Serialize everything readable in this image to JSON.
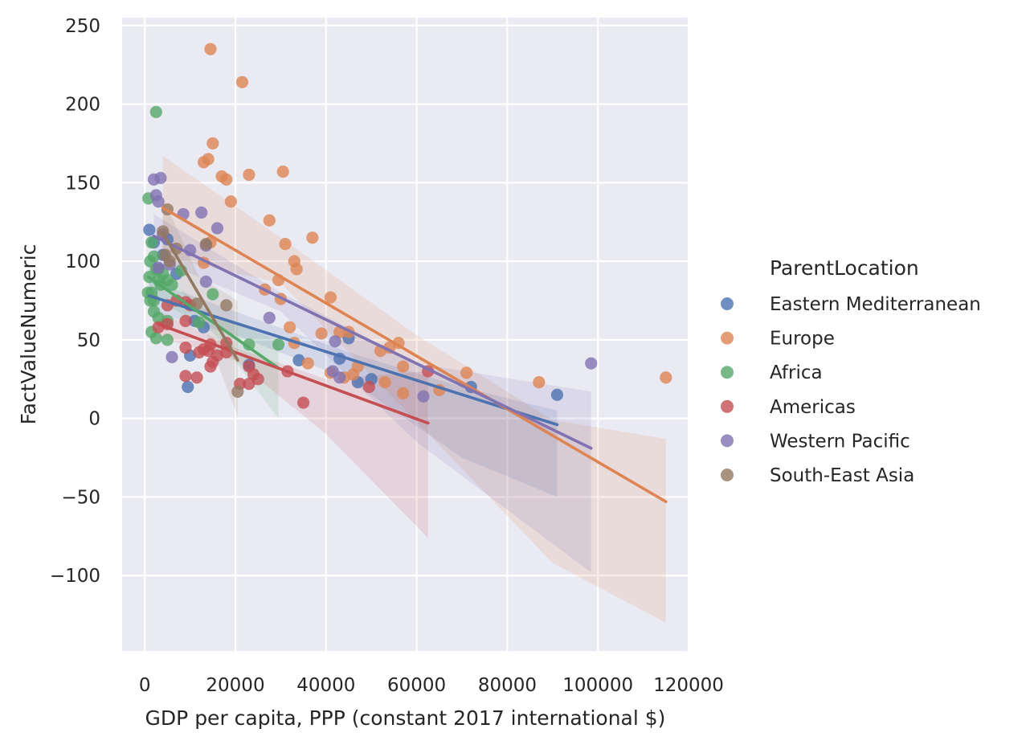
{
  "chart_data": {
    "type": "scatter",
    "xlabel": "GDP per capita, PPP (constant 2017 international $)",
    "ylabel": "FactValueNumeric",
    "xlim": [
      -5000,
      120000
    ],
    "ylim": [
      -148,
      255
    ],
    "xticks": [
      0,
      20000,
      40000,
      60000,
      80000,
      100000,
      120000
    ],
    "xtick_labels": [
      "0",
      "20000",
      "40000",
      "60000",
      "80000",
      "100000",
      "120000"
    ],
    "yticks": [
      -100,
      -50,
      0,
      50,
      100,
      150,
      200,
      250
    ],
    "ytick_labels": [
      "−100",
      "−50",
      "0",
      "50",
      "100",
      "150",
      "200",
      "250"
    ],
    "grid": true,
    "legend": {
      "title": "ParentLocation",
      "placement": "right"
    },
    "series": [
      {
        "name": "Eastern Mediterranean",
        "color": "#4C72B0",
        "points": [
          [
            1000,
            120
          ],
          [
            2000,
            112
          ],
          [
            3000,
            95
          ],
          [
            4000,
            104
          ],
          [
            5000,
            114
          ],
          [
            7000,
            92
          ],
          [
            10000,
            40
          ],
          [
            9500,
            20
          ],
          [
            11000,
            62
          ],
          [
            13000,
            58
          ],
          [
            23000,
            34
          ],
          [
            34000,
            37
          ],
          [
            43000,
            38
          ],
          [
            45000,
            51
          ],
          [
            47000,
            23
          ],
          [
            50000,
            25
          ],
          [
            72000,
            20
          ],
          [
            91000,
            15
          ]
        ],
        "fit": [
          [
            1000,
            78
          ],
          [
            91000,
            -4
          ]
        ],
        "ci_upper": [
          [
            1000,
            88
          ],
          [
            20000,
            68
          ],
          [
            45000,
            42
          ],
          [
            70000,
            20
          ],
          [
            91000,
            5
          ]
        ],
        "ci_lower": [
          [
            1000,
            68
          ],
          [
            20000,
            53
          ],
          [
            45000,
            25
          ],
          [
            70000,
            -25
          ],
          [
            91000,
            -50
          ]
        ]
      },
      {
        "name": "Europe",
        "color": "#DD8452",
        "points": [
          [
            14500,
            235
          ],
          [
            21500,
            214
          ],
          [
            15000,
            175
          ],
          [
            30500,
            157
          ],
          [
            14000,
            165
          ],
          [
            13000,
            163
          ],
          [
            17000,
            154
          ],
          [
            18000,
            152
          ],
          [
            23000,
            155
          ],
          [
            19000,
            138
          ],
          [
            27500,
            126
          ],
          [
            31000,
            111
          ],
          [
            37000,
            115
          ],
          [
            14500,
            112
          ],
          [
            33000,
            100
          ],
          [
            33500,
            95
          ],
          [
            13000,
            99
          ],
          [
            29500,
            88
          ],
          [
            26500,
            82
          ],
          [
            30000,
            76
          ],
          [
            41000,
            77
          ],
          [
            39000,
            54
          ],
          [
            32000,
            58
          ],
          [
            45000,
            55
          ],
          [
            43000,
            55
          ],
          [
            52000,
            43
          ],
          [
            54000,
            45
          ],
          [
            56000,
            48
          ],
          [
            57000,
            33
          ],
          [
            47000,
            33
          ],
          [
            53000,
            23
          ],
          [
            41000,
            29
          ],
          [
            44000,
            26
          ],
          [
            46000,
            28
          ],
          [
            57000,
            16
          ],
          [
            65000,
            18
          ],
          [
            36000,
            35
          ],
          [
            33000,
            48
          ],
          [
            71000,
            29
          ],
          [
            87000,
            23
          ],
          [
            115000,
            26
          ]
        ],
        "fit": [
          [
            4000,
            134
          ],
          [
            115000,
            -53
          ]
        ],
        "ci_upper": [
          [
            4000,
            167
          ],
          [
            30000,
            115
          ],
          [
            60000,
            53
          ],
          [
            90000,
            -1
          ],
          [
            115000,
            -13
          ]
        ],
        "ci_lower": [
          [
            4000,
            103
          ],
          [
            30000,
            86
          ],
          [
            60000,
            -2
          ],
          [
            90000,
            -92
          ],
          [
            115000,
            -130
          ]
        ]
      },
      {
        "name": "Africa",
        "color": "#55A868",
        "points": [
          [
            2500,
            195
          ],
          [
            800,
            140
          ],
          [
            1200,
            100
          ],
          [
            1500,
            112
          ],
          [
            2000,
            103
          ],
          [
            1000,
            90
          ],
          [
            2500,
            95
          ],
          [
            3000,
            88
          ],
          [
            1500,
            80
          ],
          [
            2000,
            75
          ],
          [
            3500,
            85
          ],
          [
            4000,
            92
          ],
          [
            5000,
            88
          ],
          [
            6000,
            85
          ],
          [
            8000,
            94
          ],
          [
            2000,
            68
          ],
          [
            3000,
            64
          ],
          [
            5000,
            62
          ],
          [
            1500,
            55
          ],
          [
            2500,
            51
          ],
          [
            5000,
            50
          ],
          [
            12000,
            61
          ],
          [
            15000,
            79
          ],
          [
            23000,
            47
          ],
          [
            29500,
            47
          ],
          [
            700,
            80
          ],
          [
            1200,
            75
          ]
        ],
        "fit": [
          [
            800,
            90
          ],
          [
            29500,
            32
          ]
        ],
        "ci_upper": [
          [
            800,
            100
          ],
          [
            15000,
            65
          ],
          [
            29500,
            50
          ]
        ],
        "ci_lower": [
          [
            800,
            79
          ],
          [
            15000,
            55
          ],
          [
            29500,
            0
          ]
        ]
      },
      {
        "name": "Americas",
        "color": "#C44E52",
        "points": [
          [
            5000,
            72
          ],
          [
            7000,
            75
          ],
          [
            9000,
            74
          ],
          [
            10000,
            72
          ],
          [
            3000,
            58
          ],
          [
            5000,
            60
          ],
          [
            9000,
            62
          ],
          [
            9000,
            45
          ],
          [
            12000,
            42
          ],
          [
            13000,
            44
          ],
          [
            14000,
            43
          ],
          [
            14500,
            47
          ],
          [
            15000,
            36
          ],
          [
            14500,
            33
          ],
          [
            16000,
            40
          ],
          [
            18000,
            42
          ],
          [
            18000,
            48
          ],
          [
            21000,
            22
          ],
          [
            23000,
            22
          ],
          [
            24000,
            28
          ],
          [
            25000,
            25
          ],
          [
            23000,
            33
          ],
          [
            9000,
            27
          ],
          [
            11500,
            26
          ],
          [
            31500,
            30
          ],
          [
            35000,
            10
          ],
          [
            62500,
            30
          ],
          [
            49500,
            20
          ]
        ],
        "fit": [
          [
            3000,
            60
          ],
          [
            62500,
            -3
          ]
        ],
        "ci_upper": [
          [
            3000,
            68
          ],
          [
            20000,
            45
          ],
          [
            40000,
            25
          ],
          [
            62500,
            30
          ]
        ],
        "ci_lower": [
          [
            3000,
            52
          ],
          [
            20000,
            37
          ],
          [
            40000,
            -10
          ],
          [
            62500,
            -76
          ]
        ]
      },
      {
        "name": "Western Pacific",
        "color": "#8172B2",
        "points": [
          [
            2000,
            152
          ],
          [
            3500,
            153
          ],
          [
            2500,
            142
          ],
          [
            3000,
            138
          ],
          [
            8500,
            130
          ],
          [
            12500,
            131
          ],
          [
            4000,
            117
          ],
          [
            16000,
            121
          ],
          [
            10000,
            107
          ],
          [
            13500,
            110
          ],
          [
            3000,
            96
          ],
          [
            5500,
            98
          ],
          [
            13500,
            87
          ],
          [
            27500,
            64
          ],
          [
            6000,
            39
          ],
          [
            42000,
            49
          ],
          [
            43000,
            26
          ],
          [
            41500,
            30
          ],
          [
            61500,
            14
          ],
          [
            98500,
            35
          ]
        ],
        "fit": [
          [
            2000,
            116
          ],
          [
            98500,
            -19
          ]
        ],
        "ci_upper": [
          [
            2000,
            130
          ],
          [
            30000,
            80
          ],
          [
            60000,
            35
          ],
          [
            98500,
            17
          ]
        ],
        "ci_lower": [
          [
            2000,
            102
          ],
          [
            30000,
            68
          ],
          [
            60000,
            -15
          ],
          [
            98500,
            -98
          ]
        ]
      },
      {
        "name": "South-East Asia",
        "color": "#937860",
        "points": [
          [
            4000,
            119
          ],
          [
            5000,
            133
          ],
          [
            4500,
            104
          ],
          [
            5500,
            100
          ],
          [
            7000,
            108
          ],
          [
            13500,
            111
          ],
          [
            11500,
            73
          ],
          [
            18000,
            72
          ],
          [
            20500,
            17
          ]
        ],
        "fit": [
          [
            4000,
            118
          ],
          [
            20500,
            37
          ]
        ],
        "ci_upper": [
          [
            4000,
            140
          ],
          [
            12000,
            90
          ],
          [
            20500,
            75
          ]
        ],
        "ci_lower": [
          [
            4000,
            97
          ],
          [
            12000,
            66
          ],
          [
            20500,
            1
          ]
        ]
      }
    ]
  }
}
